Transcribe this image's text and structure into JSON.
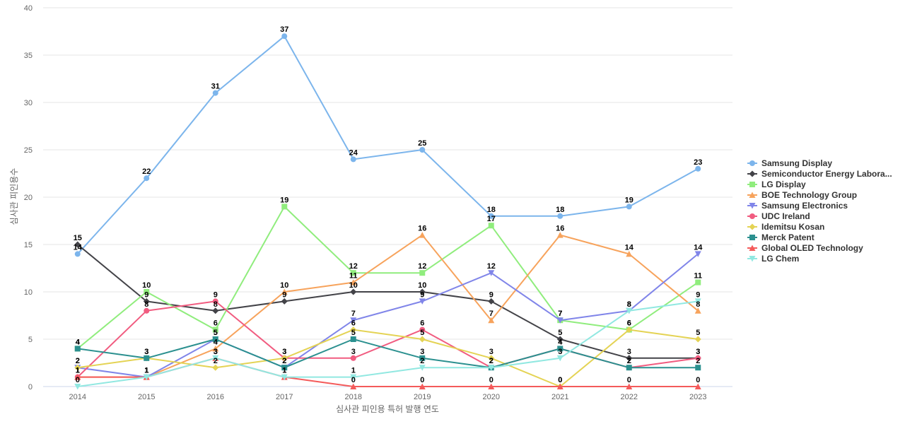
{
  "chart_data": {
    "type": "line",
    "xlabel": "심사관 피인용 특허 발행 연도",
    "ylabel": "심사관 피인용수",
    "categories": [
      "2014",
      "2015",
      "2016",
      "2017",
      "2018",
      "2019",
      "2020",
      "2021",
      "2022",
      "2023"
    ],
    "ylim": [
      0,
      40
    ],
    "yticks": [
      0,
      5,
      10,
      15,
      20,
      25,
      30,
      35,
      40
    ],
    "grid": true,
    "legend_position": "right",
    "series": [
      {
        "name": "Samsung Display",
        "legend_label": "Samsung Display",
        "color": "#7cb5ec",
        "marker": "circle",
        "values": [
          14,
          22,
          31,
          37,
          24,
          25,
          18,
          18,
          19,
          23
        ]
      },
      {
        "name": "Semiconductor Energy Laboratory",
        "legend_label": "Semiconductor Energy Labora...",
        "color": "#434348",
        "marker": "diamond",
        "values": [
          15,
          9,
          8,
          9,
          10,
          10,
          9,
          5,
          3,
          3
        ]
      },
      {
        "name": "LG Display",
        "legend_label": "LG Display",
        "color": "#90ed7d",
        "marker": "square",
        "values": [
          4,
          10,
          6,
          19,
          12,
          12,
          17,
          7,
          6,
          11
        ]
      },
      {
        "name": "BOE Technology Group",
        "legend_label": "BOE Technology Group",
        "color": "#f7a35c",
        "marker": "triangle",
        "values": [
          1,
          1,
          4,
          10,
          11,
          16,
          7,
          16,
          14,
          8
        ]
      },
      {
        "name": "Samsung Electronics",
        "legend_label": "Samsung Electronics",
        "color": "#8085e9",
        "marker": "triangle-down",
        "values": [
          2,
          1,
          5,
          2,
          7,
          9,
          12,
          7,
          8,
          14
        ]
      },
      {
        "name": "UDC Ireland",
        "legend_label": "UDC Ireland",
        "color": "#f15c80",
        "marker": "circle",
        "values": [
          1,
          8,
          9,
          3,
          3,
          6,
          2,
          4,
          2,
          3
        ]
      },
      {
        "name": "Idemitsu Kosan",
        "legend_label": "Idemitsu Kosan",
        "color": "#e4d354",
        "marker": "diamond",
        "values": [
          2,
          3,
          2,
          3,
          6,
          5,
          3,
          0,
          6,
          5
        ]
      },
      {
        "name": "Merck Patent",
        "legend_label": "Merck Patent",
        "color": "#2b908f",
        "marker": "square",
        "values": [
          4,
          3,
          5,
          2,
          5,
          3,
          2,
          4,
          2,
          2
        ]
      },
      {
        "name": "Global OLED Technology",
        "legend_label": "Global OLED Technology",
        "color": "#f45b5b",
        "marker": "triangle",
        "values": [
          1,
          1,
          3,
          1,
          0,
          0,
          0,
          0,
          0,
          0
        ]
      },
      {
        "name": "LG Chem",
        "legend_label": "LG Chem",
        "color": "#91e8e1",
        "marker": "triangle-down",
        "values": [
          0,
          1,
          3,
          1,
          1,
          2,
          2,
          3,
          8,
          9
        ]
      }
    ]
  }
}
